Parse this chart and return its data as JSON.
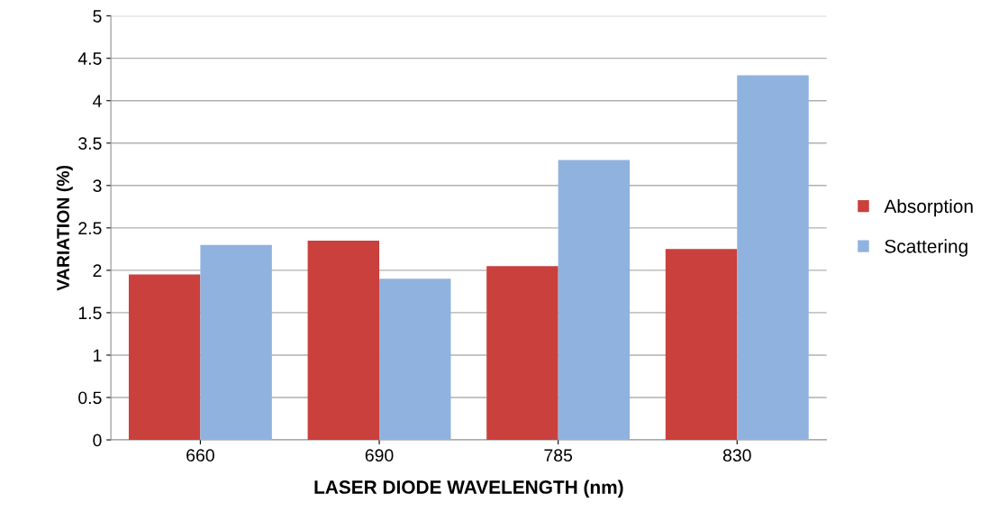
{
  "chart_data": {
    "type": "bar",
    "xlabel": "LASER DIODE WAVELENGTH (nm)",
    "ylabel": "VARIATION (%)",
    "categories": [
      "660",
      "690",
      "785",
      "830"
    ],
    "series": [
      {
        "name": "Absorption",
        "color": "#c9403c",
        "values": [
          1.95,
          2.35,
          2.05,
          2.25
        ]
      },
      {
        "name": "Scattering",
        "color": "#8fb3de",
        "values": [
          2.3,
          1.9,
          3.3,
          4.3
        ]
      }
    ],
    "ylim": [
      0,
      5
    ],
    "yticks": [
      0,
      0.5,
      1,
      1.5,
      2,
      2.5,
      3,
      3.5,
      4,
      4.5,
      5
    ],
    "grid": "y",
    "legend": "right"
  }
}
